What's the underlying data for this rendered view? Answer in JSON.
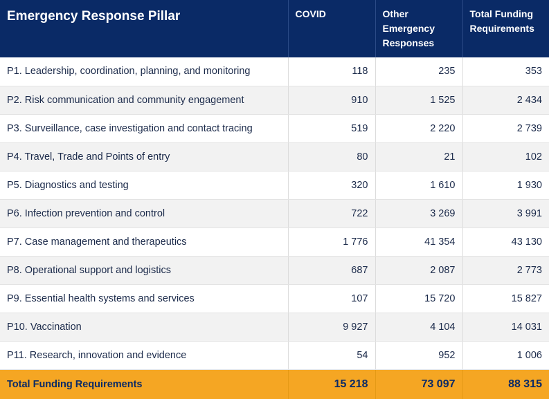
{
  "table": {
    "columns": [
      "Emergency Response Pillar",
      "COVID",
      "Other Emergency Responses",
      "Total Funding Requirements"
    ],
    "header_lines": {
      "pillar": [
        "Emergency Response Pillar"
      ],
      "covid": [
        "COVID"
      ],
      "other": [
        "Other",
        "Emergency",
        "Responses"
      ],
      "total": [
        "Total Funding",
        "Requirements"
      ]
    },
    "rows": [
      [
        "P1. Leadership, coordination, planning, and monitoring",
        "118",
        "235",
        "353"
      ],
      [
        "P2. Risk communication and community engagement",
        "910",
        "1 525",
        "2 434"
      ],
      [
        "P3. Surveillance, case investigation and contact tracing",
        "519",
        "2 220",
        "2 739"
      ],
      [
        "P4. Travel, Trade and Points of entry",
        "80",
        "21",
        "102"
      ],
      [
        "P5. Diagnostics and testing",
        "320",
        "1 610",
        "1 930"
      ],
      [
        "P6. Infection prevention and control",
        "722",
        "3 269",
        "3 991"
      ],
      [
        "P7. Case management and therapeutics",
        "1 776",
        "41 354",
        "43 130"
      ],
      [
        "P8. Operational support and logistics",
        "687",
        "2 087",
        "2 773"
      ],
      [
        "P9. Essential health systems and services",
        "107",
        "15 720",
        "15 827"
      ],
      [
        "P10. Vaccination",
        "9 927",
        "4 104",
        "14 031"
      ],
      [
        "P11. Research, innovation and evidence",
        "54",
        "952",
        "1 006"
      ]
    ],
    "total_row": [
      "Total Funding Requirements",
      "15 218",
      "73 097",
      "88 315"
    ]
  },
  "colors": {
    "header_bg": "#0a2a66",
    "total_bg": "#f5a623",
    "stripe_bg": "#f2f2f2"
  }
}
